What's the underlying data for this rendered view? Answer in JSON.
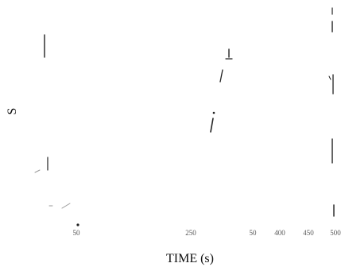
{
  "chart_data": {
    "type": "scatter",
    "title": "",
    "xlabel": "TIME (s)",
    "ylabel": "S",
    "x_ticks": [
      "50",
      "250",
      "50",
      "400",
      "450",
      "500"
    ],
    "grid": false,
    "legend": "none",
    "mark_color": "#222222"
  }
}
